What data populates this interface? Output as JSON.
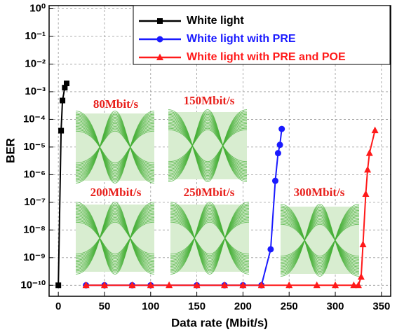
{
  "chart_data": {
    "type": "line",
    "log_y": true,
    "grid": true,
    "legend_position": "upper right",
    "x_label": "Data rate (Mbit/s)",
    "y_label": "BER",
    "xlim": [
      -10,
      360
    ],
    "xticks": [
      0,
      50,
      100,
      150,
      200,
      250,
      300,
      350
    ],
    "ylim": [
      4e-11,
      1.3
    ],
    "yticks": [
      {
        "value": 1,
        "label": "10⁰"
      },
      {
        "value": 0.1,
        "label": "10⁻¹"
      },
      {
        "value": 0.01,
        "label": "10⁻²"
      },
      {
        "value": 0.001,
        "label": "10⁻³"
      },
      {
        "value": 0.0001,
        "label": "10⁻⁴"
      },
      {
        "value": 1e-05,
        "label": "10⁻⁵"
      },
      {
        "value": 1e-06,
        "label": "10⁻⁶"
      },
      {
        "value": 1e-07,
        "label": "10⁻⁷"
      },
      {
        "value": 1e-08,
        "label": "10⁻⁸"
      },
      {
        "value": 1e-09,
        "label": "10⁻⁹"
      },
      {
        "value": 1e-10,
        "label": "10⁻¹⁰"
      }
    ],
    "series": [
      {
        "name": "White light",
        "color": "#000000",
        "marker": "square",
        "x": [
          0,
          3,
          4.5,
          7,
          9
        ],
        "values": [
          1e-10,
          3.9e-05,
          0.00048,
          0.0014,
          0.002
        ]
      },
      {
        "name": "White light with PRE",
        "color": "#1a1aff",
        "marker": "circle",
        "x": [
          30,
          50,
          80,
          100,
          150,
          180,
          200,
          220,
          230,
          235,
          238,
          240,
          242
        ],
        "values": [
          1e-10,
          1e-10,
          1e-10,
          1e-10,
          1e-10,
          1e-10,
          1e-10,
          1e-10,
          2e-09,
          6e-07,
          6e-06,
          1.2e-05,
          4.5e-05
        ]
      },
      {
        "name": "White light with PRE and POE",
        "color": "#ff1a1a",
        "marker": "triangle",
        "x": [
          30,
          50,
          80,
          100,
          120,
          150,
          180,
          200,
          220,
          250,
          280,
          300,
          320,
          325,
          328,
          330,
          333,
          335,
          337,
          343
        ],
        "values": [
          1e-10,
          1e-10,
          1e-10,
          1e-10,
          1e-10,
          1e-10,
          1e-10,
          1e-10,
          1e-10,
          1e-10,
          1e-10,
          1e-10,
          1e-10,
          1e-10,
          2e-10,
          3e-09,
          2e-07,
          1.5e-06,
          6e-06,
          4e-05
        ]
      }
    ],
    "annotations": [
      "80Mbit/s",
      "150Mbit/s",
      "200Mbit/s",
      "250Mbit/s",
      "300Mbit/s"
    ]
  }
}
